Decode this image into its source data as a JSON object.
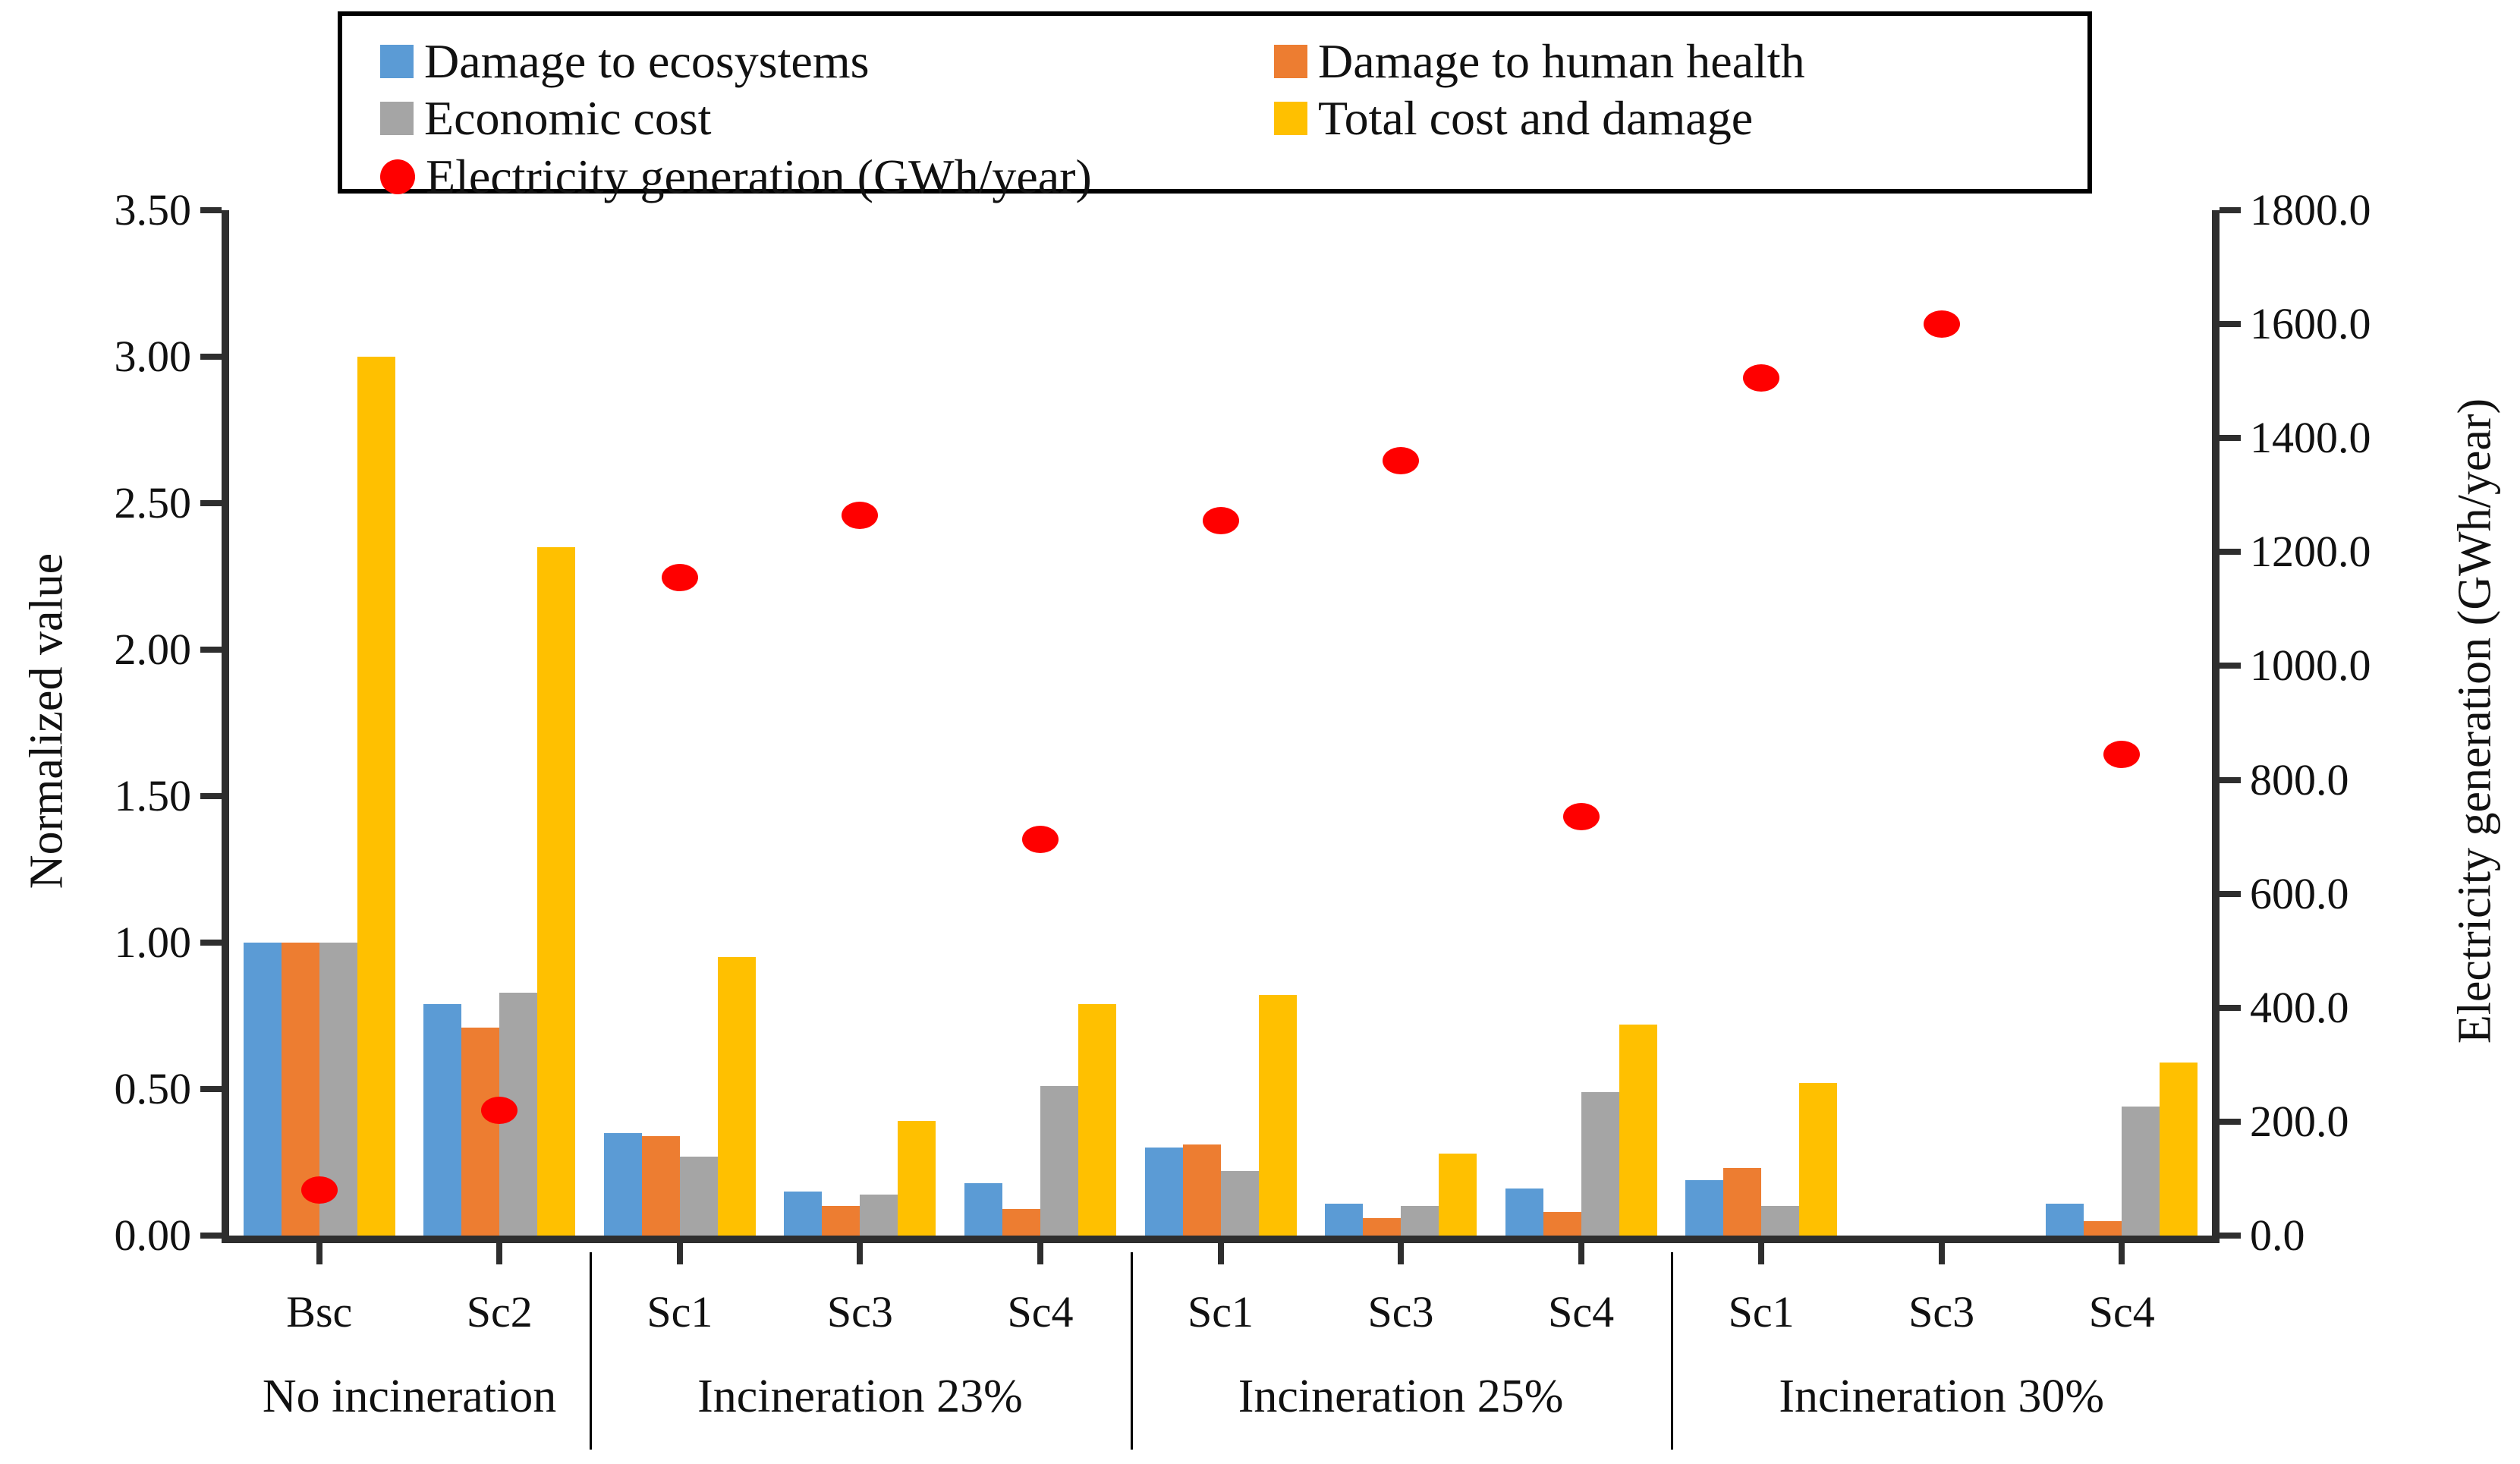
{
  "chart_data": {
    "type": "combo-bar-scatter",
    "title": "",
    "left_axis": {
      "label": "Normalized value",
      "min": 0,
      "max": 3.5,
      "tick_step": 0.5,
      "ticks": [
        "0.00",
        "0.50",
        "1.00",
        "1.50",
        "2.00",
        "2.50",
        "3.00",
        "3.50"
      ]
    },
    "right_axis": {
      "label": "Electricity generation (GWh/year)",
      "min": 0,
      "max": 1800,
      "tick_step": 200,
      "ticks": [
        "0.0",
        "200.0",
        "400.0",
        "600.0",
        "800.0",
        "1000.0",
        "1200.0",
        "1400.0",
        "1600.0",
        "1800.0"
      ]
    },
    "categories": [
      "Bsc",
      "Sc2",
      "Sc1",
      "Sc3",
      "Sc4",
      "Sc1",
      "Sc3",
      "Sc4",
      "Sc1",
      "Sc3",
      "Sc4"
    ],
    "category_groups": [
      {
        "label": "No incineration",
        "start": 0,
        "end": 1
      },
      {
        "label": "Incineration 23%",
        "start": 2,
        "end": 4
      },
      {
        "label": "Incineration 25%",
        "start": 5,
        "end": 7
      },
      {
        "label": "Incineration 30%",
        "start": 8,
        "end": 10
      }
    ],
    "bar_series": [
      {
        "name": "Damage to ecosystems",
        "color": "#5B9BD5",
        "values": [
          1.0,
          0.79,
          0.35,
          0.15,
          0.18,
          0.3,
          0.11,
          0.16,
          0.19,
          0.0,
          0.11
        ]
      },
      {
        "name": "Damage to human health",
        "color": "#ED7D31",
        "values": [
          1.0,
          0.71,
          0.34,
          0.1,
          0.09,
          0.31,
          0.06,
          0.08,
          0.23,
          0.0,
          0.05
        ]
      },
      {
        "name": "Economic cost",
        "color": "#A5A5A5",
        "values": [
          1.0,
          0.83,
          0.27,
          0.14,
          0.51,
          0.22,
          0.1,
          0.49,
          0.1,
          0.0,
          0.44
        ]
      },
      {
        "name": "Total cost and damage",
        "color": "#FFC000",
        "values": [
          3.0,
          2.35,
          0.95,
          0.39,
          0.79,
          0.82,
          0.28,
          0.72,
          0.52,
          0.0,
          0.59
        ]
      }
    ],
    "point_series": [
      {
        "name": "Electricity generation (GWh/year)",
        "color": "#FF0000",
        "marker": "circle",
        "axis": "right",
        "values": [
          80,
          220,
          1155,
          1265,
          695,
          1255,
          1360,
          735,
          1505,
          1600,
          845
        ]
      }
    ],
    "legend": {
      "position": "top",
      "entries": [
        {
          "name": "Damage to ecosystems",
          "marker": "square",
          "color": "#5B9BD5"
        },
        {
          "name": "Damage to human health",
          "marker": "square",
          "color": "#ED7D31"
        },
        {
          "name": "Economic cost",
          "marker": "square",
          "color": "#A5A5A5"
        },
        {
          "name": "Total cost and damage",
          "marker": "square",
          "color": "#FFC000"
        },
        {
          "name": "Electricity generation (GWh/year)",
          "marker": "circle",
          "color": "#FF0000"
        }
      ]
    }
  }
}
